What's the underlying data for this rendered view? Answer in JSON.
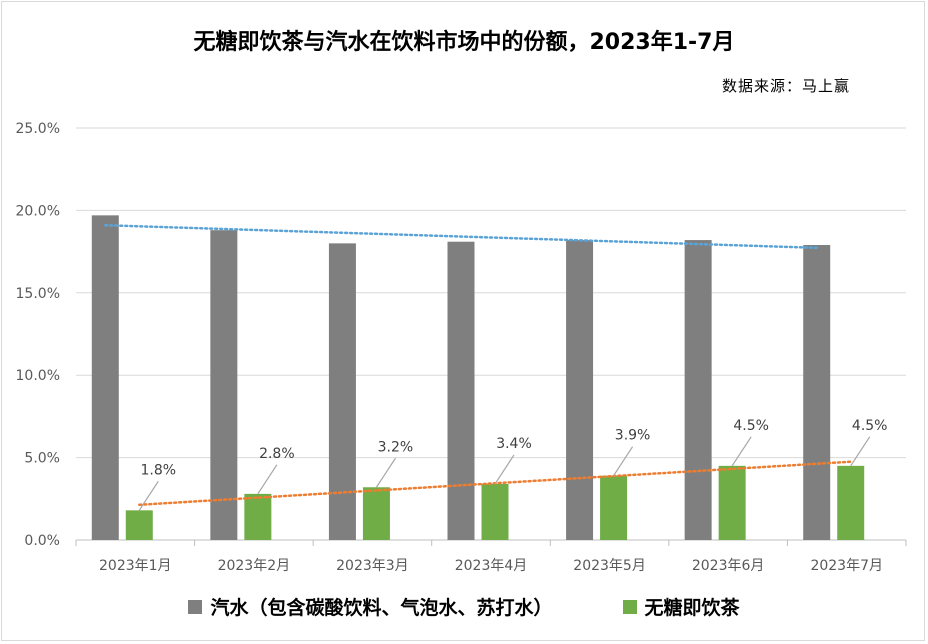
{
  "chart_data": {
    "type": "bar",
    "title": "无糖即饮茶与汽水在饮料市场中的份额，2023年1-7月",
    "source": "数据来源：马上赢",
    "categories": [
      "2023年1月",
      "2023年2月",
      "2023年3月",
      "2023年4月",
      "2023年5月",
      "2023年6月",
      "2023年7月"
    ],
    "series": [
      {
        "name": "汽水（包含碳酸饮料、气泡水、苏打水）",
        "values": [
          19.7,
          18.8,
          18.0,
          18.1,
          18.2,
          18.2,
          17.9
        ],
        "color": "#7f7f7f",
        "trendline": {
          "type": "linear",
          "color": "#5ba3d6"
        }
      },
      {
        "name": "无糖即饮茶",
        "values": [
          1.8,
          2.8,
          3.2,
          3.4,
          3.9,
          4.5,
          4.5
        ],
        "data_labels": [
          "1.8%",
          "2.8%",
          "3.2%",
          "3.4%",
          "3.9%",
          "4.5%",
          "4.5%"
        ],
        "color": "#70ad47",
        "trendline": {
          "type": "linear",
          "color": "#ed7d31"
        }
      }
    ],
    "yticks": [
      "0.0%",
      "5.0%",
      "10.0%",
      "15.0%",
      "20.0%",
      "25.0%"
    ],
    "ylim": [
      0,
      25
    ],
    "grid": true,
    "legend": "bottom"
  }
}
